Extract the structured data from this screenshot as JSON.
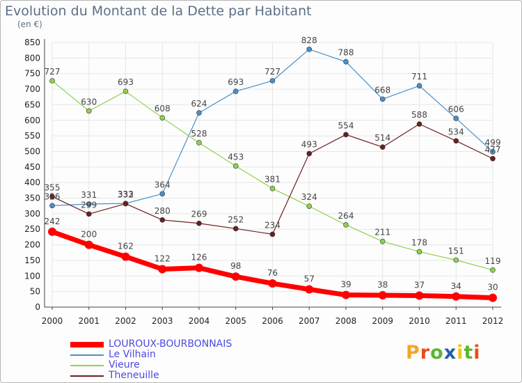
{
  "title": "Evolution du Montant de la Dette par Habitant",
  "unit_label": "(en €)",
  "logo": {
    "text": "Proxiti",
    "letters": [
      "P",
      "r",
      "o",
      "x",
      "i",
      "t",
      "i"
    ],
    "colors": [
      "#f5a623",
      "#e94e1b",
      "#5cb531",
      "#1e5fa8",
      "#f0c419",
      "#5cb531",
      "#e94e1b"
    ]
  },
  "chart_data": {
    "type": "line",
    "x": [
      "2000",
      "2001",
      "2002",
      "2003",
      "2004",
      "2005",
      "2006",
      "2007",
      "2008",
      "2009",
      "2010",
      "2011",
      "2012"
    ],
    "ylim": [
      0,
      850
    ],
    "yticks": [
      0,
      50,
      100,
      150,
      200,
      250,
      300,
      350,
      400,
      450,
      500,
      550,
      600,
      650,
      700,
      750,
      800,
      850
    ],
    "grid": true,
    "series": [
      {
        "name": "LOUROUX-BOURBONNAIS",
        "color": "#ff0000",
        "values": [
          242,
          200,
          162,
          122,
          126,
          98,
          76,
          57,
          39,
          38,
          37,
          34,
          30
        ]
      },
      {
        "name": "Le Vilhain",
        "color": "#4a90c8",
        "values": [
          326,
          331,
          333,
          364,
          624,
          693,
          727,
          828,
          788,
          668,
          711,
          606,
          499
        ]
      },
      {
        "name": "Vieure",
        "color": "#8fd14f",
        "values": [
          727,
          630,
          693,
          608,
          528,
          453,
          381,
          324,
          264,
          211,
          178,
          151,
          119
        ]
      },
      {
        "name": "Theneuille",
        "color": "#6b1f1f",
        "values": [
          355,
          299,
          332,
          280,
          269,
          252,
          234,
          493,
          554,
          514,
          588,
          534,
          477
        ]
      }
    ]
  }
}
